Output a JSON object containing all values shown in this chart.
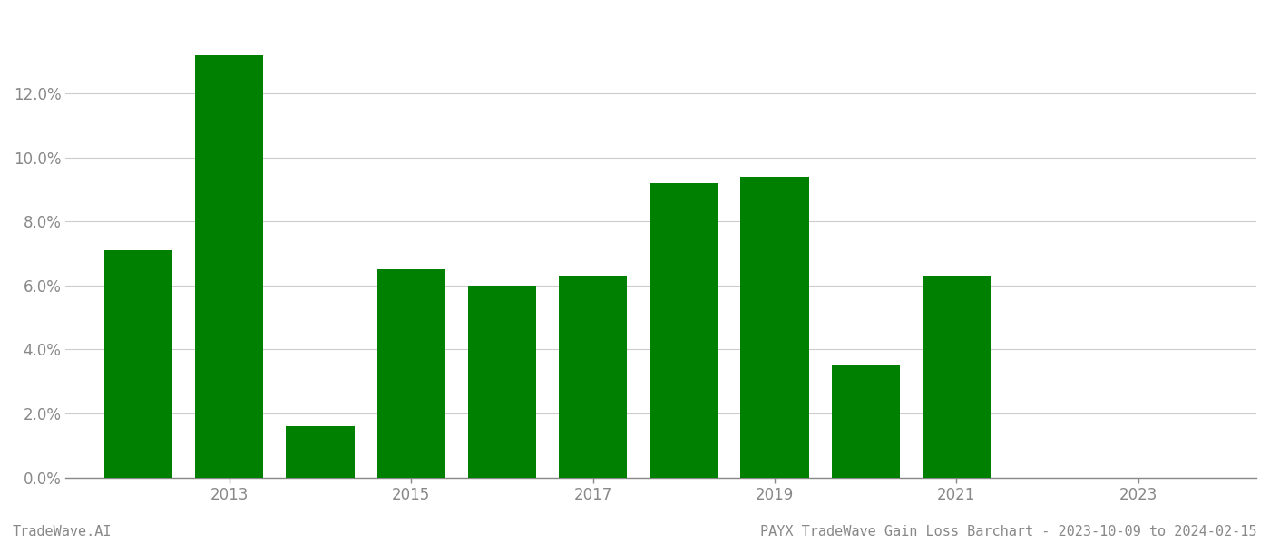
{
  "years": [
    2012,
    2013,
    2014,
    2015,
    2016,
    2017,
    2018,
    2019,
    2020,
    2021,
    2022,
    2023
  ],
  "values": [
    0.071,
    0.132,
    0.016,
    0.065,
    0.06,
    0.063,
    0.092,
    0.094,
    0.035,
    0.063,
    0.0,
    0.0
  ],
  "bar_color": "#008000",
  "background_color": "#ffffff",
  "grid_color": "#cccccc",
  "axis_color": "#888888",
  "tick_label_color": "#888888",
  "footer_left": "TradeWave.AI",
  "footer_right": "PAYX TradeWave Gain Loss Barchart - 2023-10-09 to 2024-02-15",
  "footer_color": "#888888",
  "footer_fontsize": 11,
  "ylim": [
    0,
    0.145
  ],
  "ytick_values": [
    0.0,
    0.02,
    0.04,
    0.06,
    0.08,
    0.1,
    0.12
  ],
  "xtick_positions": [
    2013,
    2015,
    2017,
    2019,
    2021,
    2023
  ],
  "xlim": [
    2011.2,
    2024.3
  ],
  "bar_width": 0.75
}
